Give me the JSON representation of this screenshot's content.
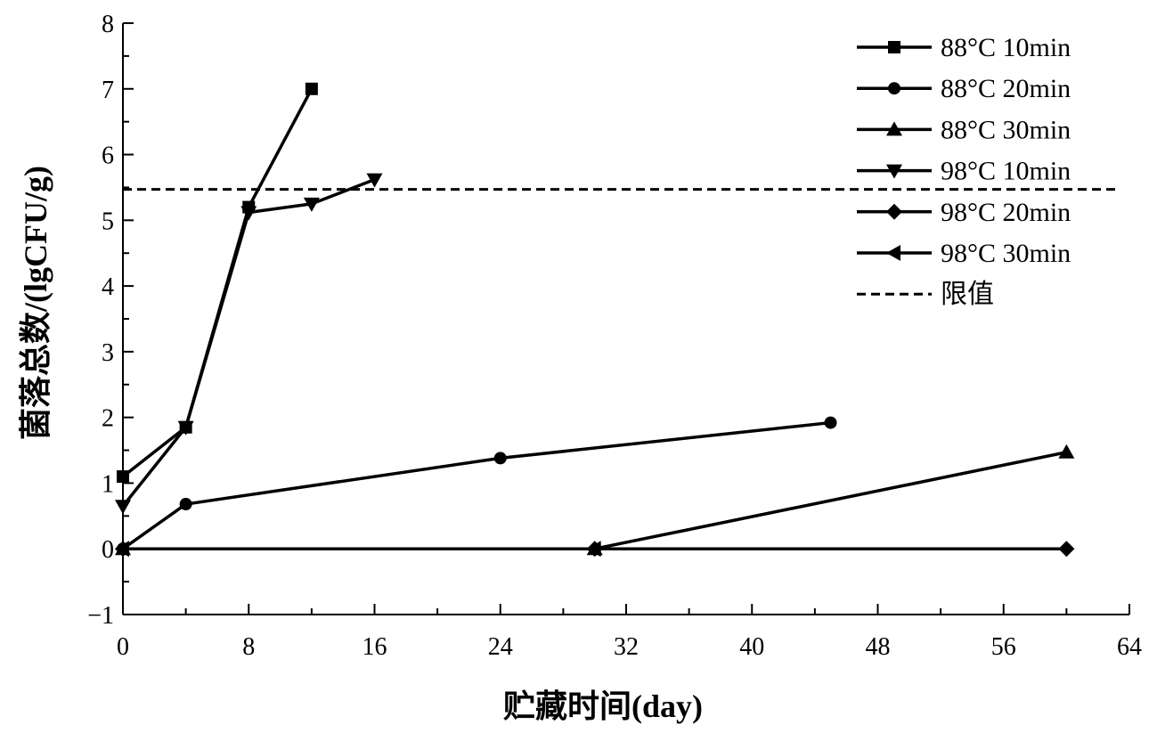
{
  "chart_data": {
    "type": "line",
    "xlabel": "贮藏时间(day)",
    "ylabel": "菌落总数/(lgCFU/g)",
    "xlim": [
      0,
      64
    ],
    "ylim": [
      -1,
      8
    ],
    "x_ticks": [
      0,
      8,
      16,
      24,
      32,
      40,
      48,
      56,
      64
    ],
    "y_ticks": [
      -1,
      0,
      1,
      2,
      3,
      4,
      5,
      6,
      7,
      8
    ],
    "y_tick_labels": [
      "−1",
      "0",
      "1",
      "2",
      "3",
      "4",
      "5",
      "6",
      "7",
      "8"
    ],
    "grid": false,
    "legend_position": "top-right",
    "line_color": "#000000",
    "series": [
      {
        "name": "88°C 10min",
        "marker": "square",
        "x": [
          0,
          4,
          8,
          12
        ],
        "y": [
          1.1,
          1.85,
          5.2,
          7.0
        ]
      },
      {
        "name": "88°C 20min",
        "marker": "circle",
        "x": [
          0,
          4,
          24,
          45
        ],
        "y": [
          0,
          0.68,
          1.38,
          1.92
        ]
      },
      {
        "name": "88°C 30min",
        "marker": "triangle-up",
        "x": [
          0,
          30,
          60
        ],
        "y": [
          0,
          0,
          1.47
        ]
      },
      {
        "name": "98°C 10min",
        "marker": "triangle-down",
        "x": [
          0,
          4,
          8,
          12,
          16
        ],
        "y": [
          0.65,
          1.85,
          5.12,
          5.25,
          5.62
        ]
      },
      {
        "name": "98°C 20min",
        "marker": "diamond",
        "x": [
          0,
          30,
          60
        ],
        "y": [
          0,
          0,
          0
        ]
      },
      {
        "name": "98°C 30min",
        "marker": "triangle-left",
        "x": [
          0,
          30
        ],
        "y": [
          0,
          0
        ]
      }
    ],
    "limit_line": {
      "name": "限值",
      "y": 5.47,
      "style": "dashed"
    }
  }
}
